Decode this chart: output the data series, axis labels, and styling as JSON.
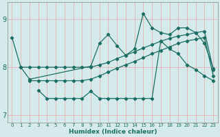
{
  "xlabel": "Humidex (Indice chaleur)",
  "bg_color": "#d5eaea",
  "line_color": "#1a6e64",
  "grid_color_major": "#e8b0b0",
  "grid_color_minor": "#e8b0b0",
  "xlim": [
    -0.5,
    23.5
  ],
  "ylim": [
    6.85,
    9.35
  ],
  "yticks": [
    7,
    8,
    9
  ],
  "xticks": [
    0,
    1,
    2,
    3,
    4,
    5,
    6,
    7,
    8,
    9,
    10,
    11,
    12,
    13,
    14,
    15,
    16,
    17,
    18,
    19,
    20,
    21,
    22,
    23
  ],
  "s1_x": [
    0,
    1,
    2,
    9,
    10,
    11,
    12,
    13,
    14,
    15,
    16,
    17,
    18,
    19,
    20,
    21,
    22,
    23
  ],
  "s1_y": [
    8.62,
    8.0,
    7.75,
    8.02,
    8.5,
    8.68,
    8.45,
    8.25,
    8.38,
    9.12,
    8.82,
    8.72,
    8.68,
    8.82,
    8.82,
    8.72,
    8.5,
    7.98
  ],
  "s2_x": [
    1,
    2,
    3,
    4,
    5,
    6,
    7,
    8,
    9,
    10,
    11,
    12,
    13,
    14,
    15,
    16,
    17,
    18,
    19,
    20,
    21,
    22,
    23
  ],
  "s2_y": [
    8.0,
    8.0,
    8.0,
    8.0,
    8.0,
    8.0,
    8.0,
    8.0,
    8.0,
    8.05,
    8.1,
    8.18,
    8.25,
    8.32,
    8.4,
    8.47,
    8.54,
    8.6,
    8.65,
    8.68,
    8.72,
    8.75,
    7.95
  ],
  "s3_x": [
    2,
    3,
    4,
    5,
    6,
    7,
    8,
    9,
    10,
    11,
    12,
    13,
    14,
    15,
    16,
    17,
    18,
    19,
    20,
    21,
    22,
    23
  ],
  "s3_y": [
    7.72,
    7.72,
    7.72,
    7.72,
    7.72,
    7.72,
    7.72,
    7.75,
    7.82,
    7.9,
    7.98,
    8.05,
    8.12,
    8.2,
    8.28,
    8.35,
    8.42,
    8.5,
    8.55,
    8.58,
    8.62,
    7.82
  ],
  "s4_x": [
    3,
    4,
    5,
    6,
    7,
    8,
    9,
    10,
    11,
    12,
    13,
    14,
    15,
    16,
    17,
    18,
    19,
    20,
    21,
    22,
    23
  ],
  "s4_y": [
    7.52,
    7.35,
    7.35,
    7.35,
    7.35,
    7.35,
    7.5,
    7.35,
    7.35,
    7.35,
    7.35,
    7.35,
    7.35,
    7.35,
    8.55,
    8.38,
    8.28,
    8.05,
    7.95,
    7.82,
    7.72
  ]
}
